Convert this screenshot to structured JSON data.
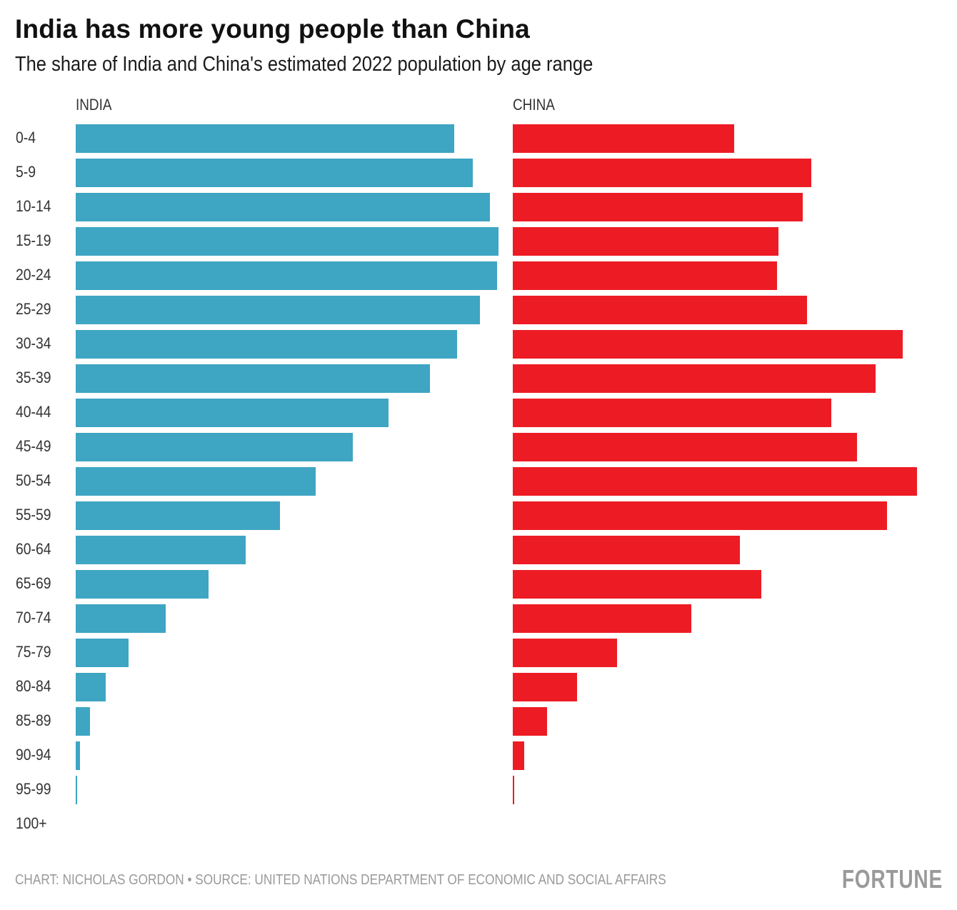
{
  "chart_data": {
    "type": "bar",
    "orientation": "horizontal",
    "title": "India has more young people than China",
    "subtitle": "The share of India and China's estimated 2022 population by age range",
    "xlabel": "",
    "ylabel": "",
    "unit": "percent of population",
    "grid": false,
    "categories": [
      "0-4",
      "5-9",
      "10-14",
      "15-19",
      "20-24",
      "25-29",
      "30-34",
      "35-39",
      "40-44",
      "45-49",
      "50-54",
      "55-59",
      "60-64",
      "65-69",
      "70-74",
      "75-79",
      "80-84",
      "85-89",
      "90-94",
      "95-99",
      "100+"
    ],
    "series": [
      {
        "name": "INDIA",
        "color": "#3ea5c3",
        "values": [
          7.97,
          8.36,
          8.72,
          8.9,
          8.87,
          8.51,
          8.03,
          7.46,
          6.59,
          5.83,
          5.05,
          4.3,
          3.58,
          2.8,
          1.89,
          1.11,
          0.63,
          0.3,
          0.09,
          0.03,
          0.0
        ]
      },
      {
        "name": "CHINA",
        "color": "#ed1c24",
        "values": [
          4.66,
          6.29,
          6.11,
          5.59,
          5.56,
          6.2,
          8.21,
          7.64,
          6.71,
          7.25,
          8.51,
          7.88,
          4.78,
          5.23,
          3.76,
          2.2,
          1.35,
          0.72,
          0.24,
          0.03,
          0.0
        ]
      }
    ],
    "xlim": [
      0,
      9
    ]
  },
  "footer": {
    "credit": "CHART: NICHOLAS GORDON • SOURCE: UNITED NATIONS DEPARTMENT OF ECONOMIC AND SOCIAL AFFAIRS",
    "logo": "FORTUNE"
  }
}
